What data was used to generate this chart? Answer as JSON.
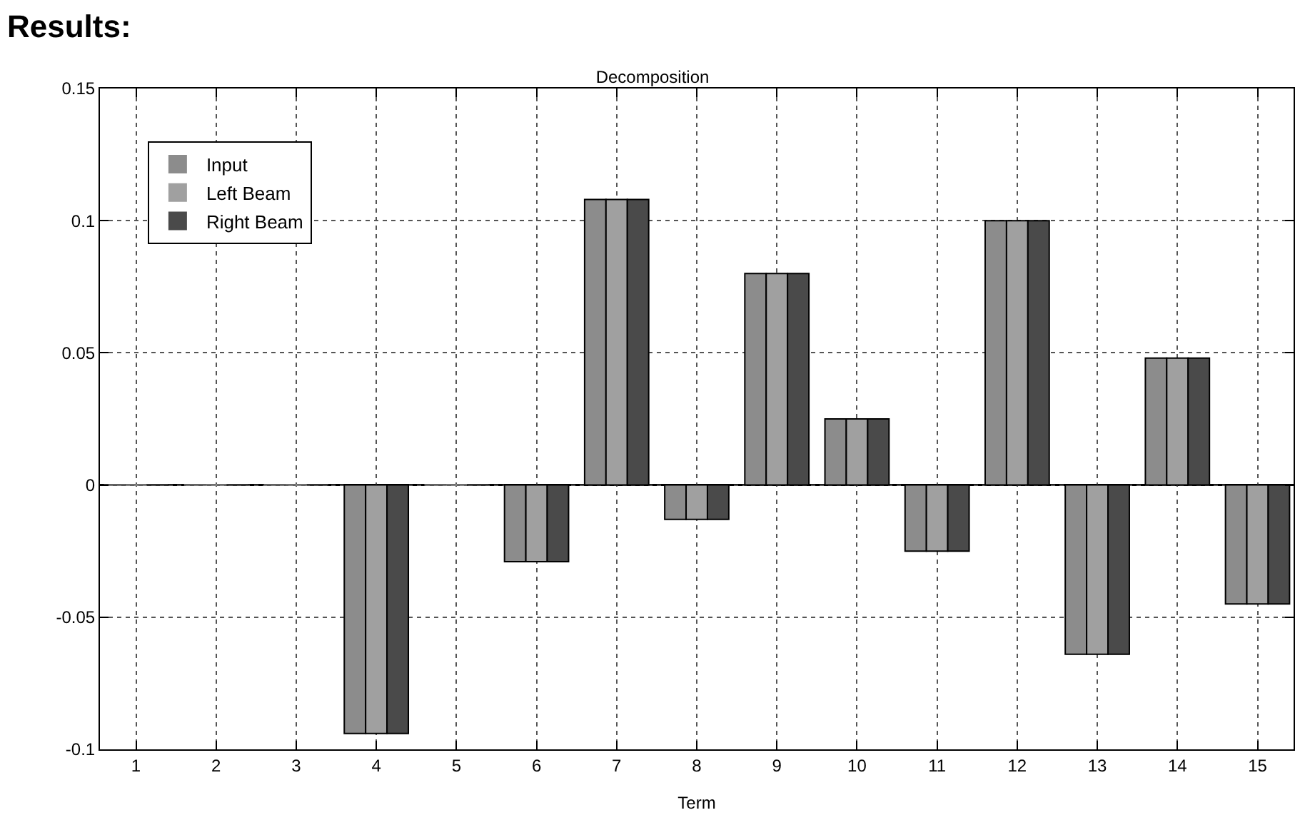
{
  "chart_data": {
    "type": "bar",
    "title": "Decomposition",
    "xlabel": "Term",
    "annotations": [
      "Results:"
    ],
    "x": [
      1,
      2,
      3,
      4,
      5,
      6,
      7,
      8,
      9,
      10,
      11,
      12,
      13,
      14,
      15
    ],
    "series": [
      {
        "name": "Input",
        "color": "#8c8c8c",
        "values": [
          0,
          0,
          0,
          -0.094,
          0,
          -0.029,
          0.108,
          -0.013,
          0.08,
          0.025,
          -0.025,
          0.1,
          -0.064,
          0.048,
          -0.045
        ]
      },
      {
        "name": "Left Beam",
        "color": "#a0a0a0",
        "values": [
          0,
          0,
          0,
          -0.094,
          0,
          -0.029,
          0.108,
          -0.013,
          0.08,
          0.025,
          -0.025,
          0.1,
          -0.064,
          0.048,
          -0.045
        ]
      },
      {
        "name": "Right Beam",
        "color": "#4a4a4a",
        "values": [
          0,
          0,
          0,
          -0.094,
          0,
          -0.029,
          0.108,
          -0.013,
          0.08,
          0.025,
          -0.025,
          0.1,
          -0.064,
          0.048,
          -0.045
        ]
      }
    ],
    "xlim": [
      0.55,
      15.45
    ],
    "xticks": [
      1,
      2,
      3,
      4,
      5,
      6,
      7,
      8,
      9,
      10,
      11,
      12,
      13,
      14,
      15
    ],
    "ylim": [
      -0.1,
      0.15
    ],
    "yticks": [
      {
        "value": -0.1,
        "label": "-0.1"
      },
      -0.05,
      0,
      0.05,
      {
        "value": 0.1,
        "label": "0.1"
      },
      0.15
    ],
    "grid": true,
    "legend": "top left"
  }
}
